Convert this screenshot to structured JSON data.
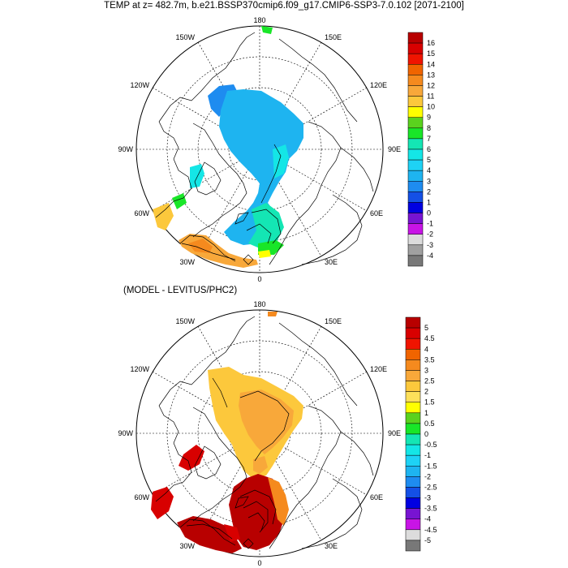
{
  "title": "TEMP at z= 482.7m, b.e21.BSSP370cmip6.f09_g17.CMIP6-SSP3-7.0.102 [2071-2100]",
  "subtitle": "(MODEL - LEVITUS/PHC2)",
  "lon_labels": {
    "top": "180",
    "bottom": "0",
    "left": "90W",
    "right": "90E",
    "upper_left": "150W",
    "upper_right": "150E",
    "mid_upper_left": "120W",
    "mid_upper_right": "120E",
    "mid_lower_left": "60W",
    "mid_lower_right": "60E",
    "lower_left": "30W",
    "lower_right": "30E"
  },
  "colorbar_top": {
    "labels": [
      "16",
      "15",
      "14",
      "13",
      "12",
      "11",
      "10",
      "9",
      "8",
      "7",
      "6",
      "5",
      "4",
      "3",
      "2",
      "1",
      "0",
      "-1",
      "-2",
      "-3",
      "-4"
    ],
    "colors": [
      "#b80000",
      "#d80000",
      "#f01400",
      "#f06400",
      "#f58a1e",
      "#f8a83a",
      "#fcc83c",
      "#ffff00",
      "#5ad21e",
      "#19e628",
      "#14e6b4",
      "#14e6e6",
      "#1ed2f5",
      "#1eb4f0",
      "#1e8cf0",
      "#1450e6",
      "#0000e1",
      "#7814d2",
      "#c814e6",
      "#dcdcdc",
      "#a0a0a0",
      "#787878"
    ]
  },
  "colorbar_bottom": {
    "labels": [
      "5",
      "4.5",
      "4",
      "3.5",
      "3",
      "2.5",
      "2",
      "1.5",
      "1",
      "0.5",
      "0",
      "-0.5",
      "-1",
      "-1.5",
      "-2",
      "-2.5",
      "-3",
      "-3.5",
      "-4",
      "-4.5",
      "-5"
    ],
    "colors": [
      "#b80000",
      "#d80000",
      "#f01400",
      "#f06400",
      "#f58a1e",
      "#f8a83a",
      "#fcc83c",
      "#fde05a",
      "#ffff00",
      "#5ad21e",
      "#19e628",
      "#14e6b4",
      "#14e6e6",
      "#1ed2f5",
      "#1eb4f0",
      "#1e8cf0",
      "#1450e6",
      "#0000e1",
      "#7814d2",
      "#c814e6",
      "#dcdcdc",
      "#787878"
    ]
  }
}
